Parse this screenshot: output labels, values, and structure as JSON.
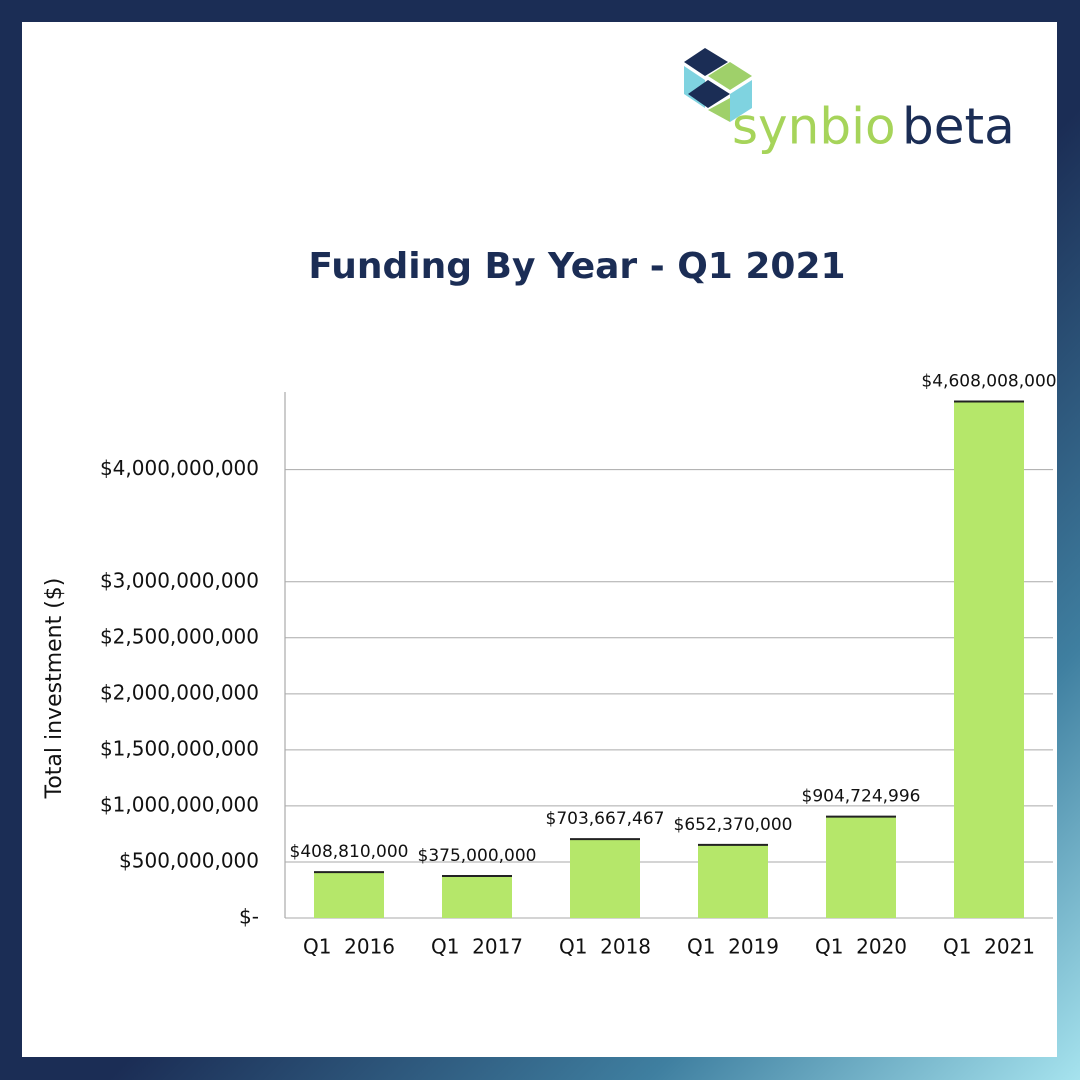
{
  "logo": [
    "synbio",
    "beta"
  ],
  "chart_data": {
    "type": "bar",
    "title": "Funding By Year - Q1 2021",
    "y_label": "Total investment ($)",
    "categories": [
      "Q1  2016",
      "Q1  2017",
      "Q1  2018",
      "Q1  2019",
      "Q1  2020",
      "Q1  2021"
    ],
    "values": [
      408810000,
      375000000,
      703667467,
      652370000,
      904724996,
      4608008000
    ],
    "value_labels": [
      "$408,810,000",
      "$375,000,000",
      "$703,667,467",
      "$652,370,000",
      "$904,724,996",
      "$4,608,008,000"
    ],
    "color": "#b5e76a",
    "ylim": [
      0,
      4800000000
    ],
    "yticks": [
      {
        "value": 0,
        "label": "$-"
      },
      {
        "value": 500000000,
        "label": "$500,000,000"
      },
      {
        "value": 1000000000,
        "label": "$1,000,000,000"
      },
      {
        "value": 1500000000,
        "label": "$1,500,000,000"
      },
      {
        "value": 2000000000,
        "label": "$2,000,000,000"
      },
      {
        "value": 2500000000,
        "label": "$2,500,000,000"
      },
      {
        "value": 3000000000,
        "label": "$3,000,000,000"
      },
      {
        "value": 4000000000,
        "label": "$4,000,000,000"
      }
    ],
    "grid": true
  }
}
